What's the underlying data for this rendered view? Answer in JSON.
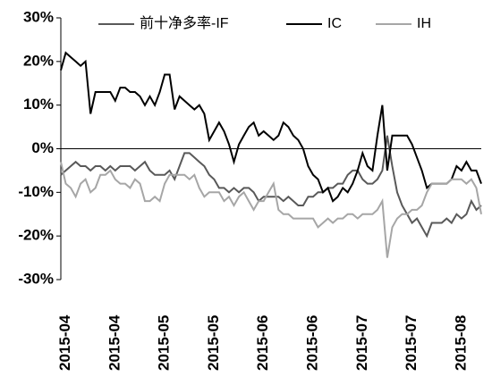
{
  "chart_data": {
    "type": "line",
    "categories": [
      null,
      "2015-04",
      null,
      null,
      null,
      null,
      null,
      null,
      null,
      null,
      null,
      "2015-04",
      null,
      null,
      null,
      null,
      null,
      null,
      null,
      null,
      null,
      "2015-05",
      null,
      null,
      null,
      null,
      null,
      null,
      null,
      null,
      null,
      "2015-05",
      null,
      null,
      null,
      null,
      null,
      null,
      null,
      null,
      null,
      "2015-06",
      null,
      null,
      null,
      null,
      null,
      null,
      null,
      null,
      null,
      "2015-06",
      null,
      null,
      null,
      null,
      null,
      null,
      null,
      null,
      null,
      "2015-07",
      null,
      null,
      null,
      null,
      null,
      null,
      null,
      null,
      null,
      "2015-07",
      null,
      null,
      null,
      null,
      null,
      null,
      null,
      null,
      null,
      "2015-08",
      null,
      null,
      null,
      null
    ],
    "series": [
      {
        "name": "前十净多率-IF",
        "color": "#595959",
        "values": [
          -6,
          -5,
          -4,
          -3,
          -4,
          -4,
          -5,
          -4,
          -4,
          -5,
          -4,
          -5,
          -4,
          -4,
          -4,
          -5,
          -4,
          -3,
          -5,
          -6,
          -6,
          -6,
          -5,
          -7,
          -4,
          -1,
          -1,
          -2,
          -3,
          -4,
          -6,
          -7,
          -9,
          -9,
          -10,
          -9,
          -10,
          -9,
          -9,
          -10,
          -12,
          -11,
          -11,
          -11,
          -11,
          -12,
          -11,
          -12,
          -13,
          -13,
          -11,
          -11,
          -10,
          -10,
          -9,
          -9,
          -8,
          -8,
          -6,
          -5,
          -5,
          -7,
          -8,
          -8,
          -7,
          -5,
          3,
          -4,
          -10,
          -13,
          -15,
          -17,
          -16,
          -18,
          -20,
          -17,
          -17,
          -17,
          -16,
          -17,
          -15,
          -16,
          -15,
          -12,
          -14,
          -13
        ]
      },
      {
        "name": "IC",
        "color": "#000000",
        "values": [
          18,
          22,
          21,
          20,
          19,
          20,
          8,
          13,
          13,
          13,
          13,
          11,
          14,
          14,
          13,
          13,
          12,
          10,
          12,
          10,
          13,
          17,
          17,
          9,
          12,
          11,
          10,
          9,
          10,
          8,
          2,
          4,
          6,
          4,
          1,
          -3,
          1,
          3,
          5,
          6,
          3,
          4,
          3,
          2,
          3,
          6,
          5,
          3,
          2,
          0,
          -4,
          -6,
          -7,
          -10,
          -9,
          -12,
          -11,
          -9,
          -10,
          -8,
          -5,
          -1,
          -4,
          -5,
          3,
          10,
          -5,
          3,
          3,
          3,
          3,
          1,
          -2,
          -5,
          -9,
          -8,
          -8,
          -8,
          -8,
          -7,
          -4,
          -5,
          -3,
          -5,
          -5,
          -8
        ]
      },
      {
        "name": "IH",
        "color": "#a6a6a6",
        "values": [
          -3,
          -8,
          -9,
          -11,
          -8,
          -7,
          -10,
          -9,
          -6,
          -6,
          -5,
          -7,
          -8,
          -8,
          -9,
          -7,
          -8,
          -12,
          -12,
          -11,
          -12,
          -8,
          -6,
          -6,
          -6,
          -6,
          -7,
          -6,
          -9,
          -11,
          -10,
          -10,
          -10,
          -12,
          -11,
          -13,
          -11,
          -10,
          -12,
          -14,
          -12,
          -12,
          -10,
          -8,
          -14,
          -15,
          -15,
          -16,
          -16,
          -16,
          -16,
          -16,
          -18,
          -17,
          -16,
          -17,
          -16,
          -16,
          -15,
          -15,
          -16,
          -15,
          -15,
          -15,
          -14,
          -12,
          -25,
          -18,
          -16,
          -15,
          -15,
          -14,
          -14,
          -13,
          -10,
          -8,
          -8,
          -8,
          -8,
          -7,
          -7,
          -7,
          -8,
          -7,
          -9,
          -15
        ]
      }
    ],
    "ylim": [
      -30,
      30
    ],
    "yticks": [
      {
        "value": -30,
        "label": "-30%"
      },
      {
        "value": -20,
        "label": "-20%"
      },
      {
        "value": -10,
        "label": "-10%"
      },
      {
        "value": 0,
        "label": "0%"
      },
      {
        "value": 10,
        "label": "10%"
      },
      {
        "value": 20,
        "label": "20%"
      },
      {
        "value": 30,
        "label": "30%"
      }
    ],
    "grid": false,
    "legend": "top"
  }
}
